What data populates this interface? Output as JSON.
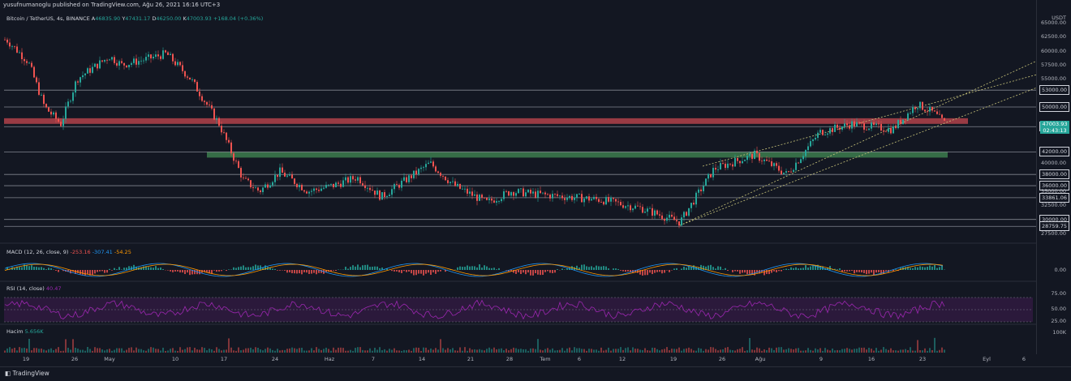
{
  "header": {
    "published": "yusufnumanoglu published on TradingView.com, Ağu 26, 2021 16:16 UTC+3"
  },
  "symbol": {
    "name": "Bitcoin / TetherUS, 4s, BINANCE",
    "ohlc": [
      {
        "k": "A",
        "v": "46835.90"
      },
      {
        "k": "Y",
        "v": "47431.17"
      },
      {
        "k": "D",
        "v": "46250.00"
      },
      {
        "k": "K",
        "v": "47003.93"
      }
    ],
    "change": "+168.04 (+0.36%)"
  },
  "indicators": {
    "macd": {
      "name": "MACD (12, 26, close, 9)",
      "values": [
        "-253.16",
        "-307.41",
        "-54.25"
      ]
    },
    "rsi": {
      "name": "RSI (14, close)",
      "value": "40.47"
    },
    "volume": {
      "name": "Hacim",
      "value": "5.656K"
    }
  },
  "yaxis": {
    "currency": "USDT",
    "ticks": [
      "65000.00",
      "62500.00",
      "60000.00",
      "57500.00",
      "55000.00",
      "53000.00",
      "50000.00",
      "46500.00",
      "42000.00",
      "40000.00",
      "38000.00",
      "36000.00",
      "35000.00",
      "33861.06",
      "32500.00",
      "30000.00",
      "28759.75",
      "27500.00"
    ],
    "current_price": "47003.93",
    "countdown": "02:43:13",
    "macd_tick": "0.00",
    "rsi_ticks": [
      "75.00",
      "50.00",
      "25.00"
    ],
    "volume_tick": "100K"
  },
  "xaxis": {
    "labels": [
      "19",
      "26",
      "May",
      "10",
      "17",
      "24",
      "Haz",
      "7",
      "14",
      "21",
      "28",
      "Tem",
      "6",
      "12",
      "19",
      "26",
      "Ağu",
      "9",
      "16",
      "23",
      "Eyl",
      "6"
    ]
  },
  "footer": {
    "brand": "TradingView"
  },
  "colors": {
    "background": "#131722",
    "up": "#26a69a",
    "down": "#ef5350",
    "resistance_zone": "#b2424a",
    "support_zone": "#3d7d4d",
    "channel": "#c8c47a",
    "rsi": "#9c27b0"
  },
  "chart_data": {
    "type": "candlestick",
    "title": "Bitcoin / TetherUS, 4s, BINANCE",
    "interval": "4s",
    "ylim": [
      27500,
      65000
    ],
    "horizontal_levels": [
      53000,
      50000,
      46500,
      42000,
      38000,
      36000,
      33861.06,
      30000,
      28759.75
    ],
    "zones": [
      {
        "name": "resistance",
        "from": 47000,
        "to": 48000
      },
      {
        "name": "support",
        "from": 41000,
        "to": 42000
      }
    ],
    "key_points": [
      {
        "date": "Apr 14",
        "price": 64000
      },
      {
        "date": "May 19",
        "price": 34000
      },
      {
        "date": "May 10",
        "price": 57000
      },
      {
        "date": "Jun 14",
        "price": 40000
      },
      {
        "date": "Jul 20",
        "price": 29500
      },
      {
        "date": "Jul 30",
        "price": 42000
      },
      {
        "date": "Aug 22",
        "price": 50500
      },
      {
        "date": "Aug 26",
        "price": 47003.93
      }
    ],
    "rsi_lines": [
      75,
      50,
      25
    ],
    "grid": true
  }
}
